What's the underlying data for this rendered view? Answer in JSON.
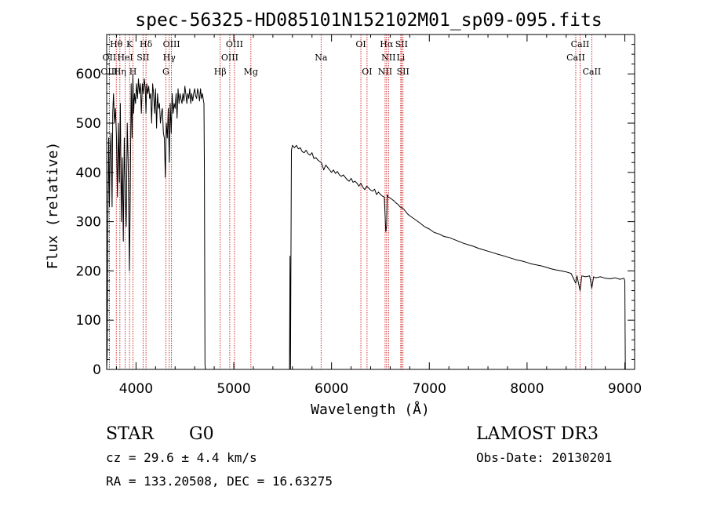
{
  "header": {
    "title": "spec-56325-HD085101N152102M01_sp09-095.fits"
  },
  "chart_data": {
    "type": "line",
    "title": "spec-56325-HD085101N152102M01_sp09-095.fits",
    "xlabel": "Wavelength (Å)",
    "ylabel": "Flux (relative)",
    "xlim": [
      3700,
      9100
    ],
    "ylim": [
      0,
      680
    ],
    "xticks": [
      4000,
      5000,
      6000,
      7000,
      8000,
      9000
    ],
    "yticks": [
      0,
      100,
      200,
      300,
      400,
      500,
      600
    ],
    "series": [
      {
        "name": "flux",
        "x": [
          3700,
          3705,
          3712,
          3720,
          3728,
          3735,
          3745,
          3755,
          3762,
          3770,
          3780,
          3790,
          3800,
          3810,
          3820,
          3830,
          3840,
          3850,
          3860,
          3870,
          3880,
          3890,
          3900,
          3910,
          3920,
          3933,
          3940,
          3950,
          3960,
          3968,
          3975,
          3985,
          3995,
          4005,
          4015,
          4025,
          4035,
          4045,
          4055,
          4065,
          4075,
          4085,
          4095,
          4102,
          4110,
          4120,
          4130,
          4140,
          4150,
          4160,
          4170,
          4180,
          4190,
          4200,
          4210,
          4220,
          4230,
          4240,
          4250,
          4260,
          4270,
          4280,
          4290,
          4300,
          4310,
          4320,
          4330,
          4340,
          4350,
          4360,
          4370,
          4380,
          4390,
          4400,
          4410,
          4420,
          4430,
          4440,
          4450,
          4460,
          4470,
          4480,
          4490,
          4500,
          4510,
          4520,
          4530,
          4540,
          4550,
          4560,
          4570,
          4580,
          4590,
          4600,
          4610,
          4620,
          4630,
          4640,
          4650,
          4660,
          4670,
          4680,
          4690,
          4695,
          4700,
          4705,
          4710,
          4720,
          5500,
          5560,
          5570,
          5575,
          5580,
          5590,
          5600,
          5620,
          5640,
          5660,
          5680,
          5700,
          5720,
          5740,
          5760,
          5780,
          5800,
          5820,
          5840,
          5860,
          5880,
          5895,
          5900,
          5920,
          5940,
          5960,
          5980,
          6000,
          6020,
          6040,
          6060,
          6080,
          6100,
          6120,
          6140,
          6160,
          6180,
          6200,
          6220,
          6240,
          6260,
          6280,
          6300,
          6320,
          6340,
          6360,
          6380,
          6400,
          6420,
          6440,
          6460,
          6480,
          6500,
          6520,
          6540,
          6555,
          6563,
          6570,
          6580,
          6600,
          6620,
          6640,
          6660,
          6680,
          6700,
          6720,
          6740,
          6760,
          6780,
          6800,
          6850,
          6900,
          6950,
          7000,
          7050,
          7100,
          7150,
          7200,
          7250,
          7300,
          7350,
          7400,
          7450,
          7500,
          7550,
          7600,
          7650,
          7700,
          7750,
          7800,
          7850,
          7900,
          7950,
          8000,
          8050,
          8100,
          8150,
          8200,
          8250,
          8300,
          8350,
          8400,
          8450,
          8498,
          8510,
          8542,
          8560,
          8600,
          8640,
          8662,
          8680,
          8700,
          8750,
          8800,
          8850,
          8900,
          8950,
          8990,
          9000,
          9005
        ],
        "values": [
          0,
          30,
          300,
          470,
          330,
          440,
          480,
          330,
          520,
          560,
          500,
          530,
          470,
          350,
          500,
          380,
          540,
          300,
          430,
          260,
          470,
          360,
          290,
          500,
          420,
          200,
          330,
          580,
          470,
          600,
          520,
          560,
          540,
          580,
          550,
          590,
          560,
          580,
          520,
          580,
          560,
          590,
          570,
          520,
          580,
          560,
          575,
          550,
          560,
          500,
          580,
          560,
          520,
          570,
          490,
          560,
          530,
          540,
          500,
          520,
          530,
          480,
          470,
          390,
          500,
          470,
          530,
          420,
          540,
          480,
          560,
          520,
          540,
          530,
          560,
          510,
          570,
          540,
          560,
          550,
          540,
          560,
          545,
          575,
          560,
          540,
          560,
          550,
          570,
          540,
          560,
          545,
          560,
          570,
          555,
          550,
          570,
          560,
          545,
          570,
          550,
          560,
          545,
          540,
          400,
          10,
          0,
          0,
          0,
          0,
          0,
          230,
          0,
          445,
          455,
          450,
          455,
          448,
          450,
          442,
          440,
          445,
          438,
          435,
          440,
          428,
          430,
          425,
          422,
          420,
          418,
          405,
          415,
          410,
          405,
          400,
          405,
          398,
          402,
          395,
          392,
          395,
          390,
          385,
          382,
          388,
          380,
          382,
          378,
          372,
          378,
          370,
          365,
          372,
          368,
          364,
          362,
          366,
          355,
          360,
          355,
          352,
          350,
          280,
          290,
          355,
          350,
          348,
          345,
          342,
          338,
          335,
          330,
          328,
          325,
          320,
          315,
          312,
          305,
          298,
          290,
          285,
          278,
          275,
          270,
          268,
          264,
          260,
          256,
          253,
          250,
          246,
          243,
          240,
          237,
          234,
          231,
          228,
          225,
          222,
          220,
          217,
          214,
          212,
          210,
          207,
          204,
          202,
          200,
          198,
          195,
          175,
          190,
          160,
          190,
          188,
          190,
          165,
          188,
          186,
          188,
          185,
          184,
          186,
          183,
          185,
          180,
          0
        ]
      }
    ],
    "spectral_lines": [
      {
        "label": "Hθ",
        "wave": 3798,
        "row": 0
      },
      {
        "label": "K",
        "wave": 3934,
        "row": 0
      },
      {
        "label": "Hδ",
        "wave": 4102,
        "row": 0
      },
      {
        "label": "OIII",
        "wave": 4363,
        "row": 0
      },
      {
        "label": "OIII",
        "wave": 5007,
        "row": 0
      },
      {
        "label": "OI",
        "wave": 6300,
        "row": 0
      },
      {
        "label": "Hα",
        "wave": 6563,
        "row": 0
      },
      {
        "label": "SII",
        "wave": 6716,
        "row": 0
      },
      {
        "label": "CaII",
        "wave": 8542,
        "row": 0
      },
      {
        "label": "OII",
        "wave": 3727,
        "row": 1
      },
      {
        "label": "HeI",
        "wave": 3889,
        "row": 1
      },
      {
        "label": "SII",
        "wave": 4072,
        "row": 1
      },
      {
        "label": "Hγ",
        "wave": 4340,
        "row": 1
      },
      {
        "label": "OIII",
        "wave": 4959,
        "row": 1
      },
      {
        "label": "Na",
        "wave": 5893,
        "row": 1
      },
      {
        "label": "NII",
        "wave": 6583,
        "row": 1
      },
      {
        "label": "Li",
        "wave": 6708,
        "row": 1
      },
      {
        "label": "CaII",
        "wave": 8498,
        "row": 1
      },
      {
        "label": "OIII",
        "wave": 3727,
        "row": 2
      },
      {
        "label": "Hη",
        "wave": 3835,
        "row": 2
      },
      {
        "label": "H",
        "wave": 3969,
        "row": 2
      },
      {
        "label": "G",
        "wave": 4305,
        "row": 2
      },
      {
        "label": "Hβ",
        "wave": 4861,
        "row": 2
      },
      {
        "label": "Mg",
        "wave": 5175,
        "row": 2
      },
      {
        "label": "OI",
        "wave": 6363,
        "row": 2
      },
      {
        "label": "NII",
        "wave": 6548,
        "row": 2
      },
      {
        "label": "SII",
        "wave": 6731,
        "row": 2
      },
      {
        "label": "CaII",
        "wave": 8662,
        "row": 2
      }
    ]
  },
  "info": {
    "object_class": "STAR",
    "subclass": "G0",
    "survey": "LAMOST DR3",
    "cz": "cz = 29.6 ± 4.4 km/s",
    "obs_date": "Obs-Date: 20130201",
    "coords": "RA = 133.20508, DEC =  16.63275"
  },
  "colors": {
    "spectrum": "#000000",
    "line_marker": "#cc0000",
    "axis": "#000000"
  }
}
